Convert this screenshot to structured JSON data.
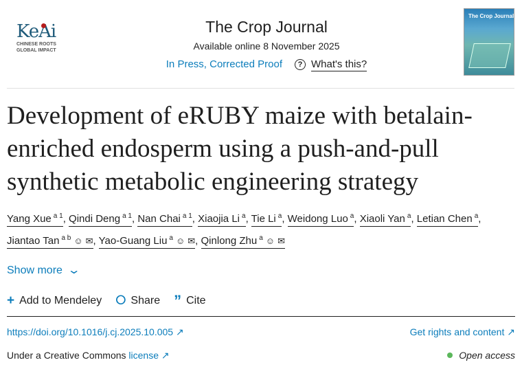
{
  "publisher": {
    "logo_text": "KeAi",
    "tagline_1": "CHINESE ROOTS",
    "tagline_2": "GLOBAL IMPACT"
  },
  "journal": {
    "title": "The Crop Journal",
    "available": "Available online 8 November 2025",
    "status": "In Press, Corrected Proof",
    "whats_this": "What's this?",
    "cover_title": "The Crop Journal"
  },
  "article": {
    "title": "Development of eRUBY maize with betalain-enriched endosperm using a push-and-pull synthetic metabolic engineering strategy"
  },
  "authors": [
    {
      "name": "Yang Xue",
      "sup": "a 1",
      "icons": false
    },
    {
      "name": "Qindi Deng",
      "sup": "a 1",
      "icons": false
    },
    {
      "name": "Nan Chai",
      "sup": "a 1",
      "icons": false
    },
    {
      "name": "Xiaojia Li",
      "sup": "a",
      "icons": false
    },
    {
      "name": "Tie Li",
      "sup": "a",
      "icons": false
    },
    {
      "name": "Weidong Luo",
      "sup": "a",
      "icons": false
    },
    {
      "name": "Xiaoli Yan",
      "sup": "a",
      "icons": false
    },
    {
      "name": "Letian Chen",
      "sup": "a",
      "icons": false
    },
    {
      "name": "Jiantao Tan",
      "sup": "a b",
      "icons": true
    },
    {
      "name": "Yao-Guang Liu",
      "sup": "a",
      "icons": true
    },
    {
      "name": "Qinlong Zhu",
      "sup": "a",
      "icons": true
    }
  ],
  "show_more": "Show more",
  "actions": {
    "mendeley": "Add to Mendeley",
    "share": "Share",
    "cite": "Cite"
  },
  "doi": "https://doi.org/10.1016/j.cj.2025.10.005",
  "rights": "Get rights and content",
  "license_prefix": "Under a Creative Commons",
  "license_link": "license",
  "open_access": "Open access",
  "colors": {
    "link": "#0c7dbb",
    "open_access_dot": "#5bb75b"
  }
}
